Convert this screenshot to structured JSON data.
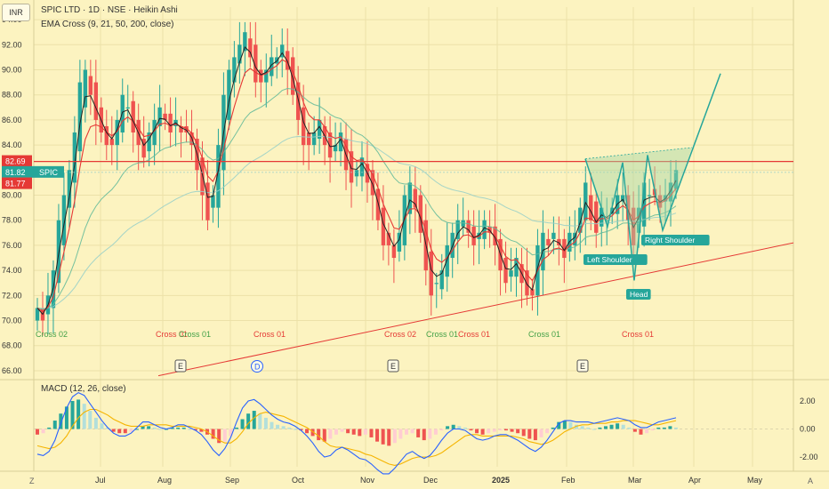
{
  "header": {
    "currency_label": "INR",
    "symbol_line": "SPIC LTD · 1D · NSE · Heikin Ashi",
    "indicator_line": "EMA Cross (9, 21, 50, 200, close)",
    "macd_line": "MACD (12, 26, close)"
  },
  "footer": {
    "left_btn": "Z",
    "right_btn": "A"
  },
  "colors": {
    "background": "#fcf3c0",
    "up": "#26a69a",
    "down": "#ef5350",
    "ema9": "#222222",
    "ema21": "#e53935",
    "ema50": "#66bb9a",
    "ema200": "#9ad0c8",
    "macd": "#2962ff",
    "signal": "#f5b400",
    "hline": "#e53935",
    "pattern": "#26a69a",
    "crosses_green": "#43a047",
    "crosses_red": "#e53935"
  },
  "chart_data": [
    {
      "type": "candlestick",
      "title": "SPIC LTD · 1D · NSE · Heikin Ashi",
      "y_ticks": [
        "94.00",
        "92.00",
        "90.00",
        "88.00",
        "86.00",
        "84.00",
        "82.00",
        "80.00",
        "78.00",
        "76.00",
        "74.00",
        "72.00",
        "70.00",
        "68.00",
        "66.00"
      ],
      "ylim": [
        65.5,
        95
      ],
      "x_ticks": [
        "Jul",
        "Aug",
        "Sep",
        "Oct",
        "Nov",
        "Dec",
        "2025",
        "Feb",
        "Mar",
        "Apr",
        "May"
      ],
      "price_labels": {
        "line": "82.69",
        "last": "81.82",
        "symbol": "SPIC",
        "ema": "81.77"
      },
      "horizontal_line_value": 82.69,
      "close_series": [
        71,
        70,
        72,
        74,
        78,
        80,
        82,
        85,
        89,
        90,
        88,
        86,
        85,
        84,
        84,
        86,
        88,
        87,
        85,
        84,
        83,
        85,
        86,
        87,
        86,
        85,
        86,
        85,
        85,
        84,
        82,
        80,
        78,
        80,
        84,
        88,
        90,
        91,
        92,
        93,
        91,
        89,
        89,
        90,
        91,
        91,
        92,
        90,
        88,
        86,
        84,
        84,
        85,
        86,
        84,
        83,
        84,
        85,
        82,
        81,
        82,
        83,
        81,
        80,
        78,
        76,
        76,
        75,
        77,
        80,
        81,
        79,
        77,
        74,
        72,
        73,
        74,
        76,
        77,
        78,
        78,
        77,
        76,
        77,
        78,
        77,
        76,
        74,
        73,
        74,
        75,
        73,
        72,
        72,
        76,
        77,
        76,
        77,
        76,
        75,
        77,
        77,
        79,
        81,
        78,
        77,
        79,
        78,
        79,
        80,
        80,
        78,
        76,
        79,
        81,
        80,
        80,
        79,
        80,
        81,
        82
      ],
      "ema_labels": [
        {
          "text": "Cross 02",
          "color": "green"
        },
        {
          "text": "Cross 01",
          "color": "red"
        },
        {
          "text": "Cross 01",
          "color": "green"
        },
        {
          "text": "Cross 01",
          "color": "red"
        },
        {
          "text": "Cross 02",
          "color": "red"
        },
        {
          "text": "Cross 01",
          "color": "green"
        },
        {
          "text": "Cross 01",
          "color": "red"
        },
        {
          "text": "Cross 01",
          "color": "green"
        },
        {
          "text": "Cross 01",
          "color": "red"
        }
      ],
      "event_markers": [
        {
          "text": "E",
          "style": "box"
        },
        {
          "text": "D",
          "style": "circle"
        },
        {
          "text": "E",
          "style": "box"
        },
        {
          "text": "E",
          "style": "box"
        }
      ],
      "annotations": [
        {
          "text": "Left Shoulder",
          "price": 74.8
        },
        {
          "text": "Head",
          "price": 72.0
        },
        {
          "text": "Right Shoulder",
          "price": 76.8
        }
      ]
    },
    {
      "type": "macd",
      "title": "MACD (12, 26, close)",
      "y_ticks": [
        "2.00",
        "0.00",
        "-2.00"
      ],
      "ylim": [
        -2.7,
        2.7
      ],
      "histogram": [
        -0.4,
        -0.3,
        0.1,
        0.6,
        1.1,
        1.6,
        2.0,
        2.1,
        1.8,
        1.3,
        0.8,
        0.4,
        0.1,
        -0.2,
        -0.3,
        -0.3,
        -0.2,
        0.0,
        0.2,
        0.2,
        0.1,
        0.0,
        0.0,
        0.1,
        0.1,
        0.1,
        0.0,
        -0.1,
        -0.2,
        -0.4,
        -0.7,
        -1.0,
        -0.9,
        -0.5,
        0.1,
        0.7,
        1.1,
        1.3,
        1.1,
        0.8,
        0.5,
        0.3,
        0.2,
        0.1,
        0.0,
        -0.1,
        -0.3,
        -0.5,
        -0.8,
        -0.9,
        -0.7,
        -0.4,
        -0.2,
        -0.3,
        -0.4,
        -0.5,
        -0.4,
        -0.6,
        -0.9,
        -1.1,
        -1.2,
        -1.0,
        -0.7,
        -0.4,
        -0.3,
        -0.6,
        -0.8,
        -0.7,
        -0.4,
        -0.1,
        0.2,
        0.3,
        0.2,
        0.1,
        -0.1,
        -0.3,
        -0.4,
        -0.3,
        -0.2,
        -0.1,
        -0.1,
        -0.2,
        -0.3,
        -0.5,
        -0.7,
        -0.8,
        -0.6,
        -0.3,
        0.1,
        0.5,
        0.6,
        0.5,
        0.3,
        0.2,
        0.1,
        0.0,
        0.1,
        0.2,
        0.3,
        0.4,
        0.3,
        0.1,
        -0.2,
        -0.4,
        -0.3,
        -0.1,
        0.1,
        0.1,
        0.2,
        0.1
      ],
      "macd": [
        -1.8,
        -1.9,
        -1.6,
        -0.8,
        0.4,
        1.5,
        2.3,
        2.6,
        2.4,
        1.8,
        1.2,
        0.6,
        0.1,
        -0.3,
        -0.5,
        -0.5,
        -0.3,
        0.1,
        0.5,
        0.5,
        0.3,
        0.1,
        0.0,
        0.1,
        0.3,
        0.3,
        0.1,
        -0.1,
        -0.4,
        -0.9,
        -1.5,
        -1.9,
        -1.4,
        -0.6,
        0.5,
        1.5,
        2.0,
        2.1,
        1.8,
        1.4,
        1.0,
        0.7,
        0.5,
        0.4,
        0.2,
        -0.1,
        -0.5,
        -1.0,
        -1.6,
        -2.0,
        -1.9,
        -1.5,
        -1.3,
        -1.5,
        -1.8,
        -2.1,
        -2.2,
        -2.5,
        -2.9,
        -3.2,
        -3.2,
        -2.8,
        -2.3,
        -1.8,
        -1.6,
        -1.9,
        -2.1,
        -1.9,
        -1.4,
        -0.8,
        -0.3,
        0.0,
        0.0,
        -0.1,
        -0.4,
        -0.7,
        -0.8,
        -0.7,
        -0.5,
        -0.4,
        -0.4,
        -0.6,
        -0.8,
        -1.1,
        -1.4,
        -1.6,
        -1.3,
        -0.8,
        -0.2,
        0.4,
        0.6,
        0.6,
        0.5,
        0.5,
        0.5,
        0.4,
        0.5,
        0.6,
        0.7,
        0.8,
        0.7,
        0.6,
        0.3,
        0.1,
        0.1,
        0.3,
        0.5,
        0.6,
        0.7,
        0.8
      ],
      "signal": [
        -1.2,
        -1.3,
        -1.4,
        -1.3,
        -1.0,
        -0.5,
        0.2,
        0.8,
        1.2,
        1.4,
        1.4,
        1.2,
        1.0,
        0.7,
        0.5,
        0.3,
        0.2,
        0.2,
        0.2,
        0.3,
        0.3,
        0.3,
        0.3,
        0.2,
        0.2,
        0.2,
        0.2,
        0.1,
        0.0,
        -0.2,
        -0.5,
        -0.8,
        -1.0,
        -1.0,
        -0.7,
        -0.2,
        0.4,
        0.8,
        1.1,
        1.2,
        1.1,
        1.0,
        0.9,
        0.7,
        0.5,
        0.3,
        0.1,
        -0.2,
        -0.5,
        -0.9,
        -1.2,
        -1.3,
        -1.3,
        -1.4,
        -1.5,
        -1.6,
        -1.8,
        -1.9,
        -2.1,
        -2.3,
        -2.5,
        -2.6,
        -2.5,
        -2.3,
        -2.1,
        -2.0,
        -2.0,
        -2.0,
        -1.9,
        -1.7,
        -1.4,
        -1.1,
        -0.8,
        -0.5,
        -0.4,
        -0.4,
        -0.5,
        -0.5,
        -0.5,
        -0.5,
        -0.5,
        -0.5,
        -0.6,
        -0.7,
        -0.9,
        -1.0,
        -1.1,
        -1.0,
        -0.8,
        -0.5,
        -0.2,
        0.0,
        0.2,
        0.3,
        0.3,
        0.4,
        0.4,
        0.4,
        0.5,
        0.5,
        0.6,
        0.6,
        0.6,
        0.5,
        0.4,
        0.3,
        0.3,
        0.4,
        0.5,
        0.6
      ]
    }
  ]
}
